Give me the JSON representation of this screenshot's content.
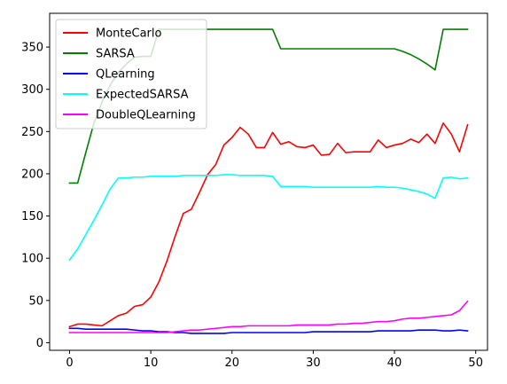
{
  "chart_data": {
    "type": "line",
    "title": "",
    "xlabel": "",
    "ylabel": "",
    "xlim": [
      -2.45,
      51.45
    ],
    "ylim": [
      -9,
      390
    ],
    "x_ticks": [
      0,
      10,
      20,
      30,
      40,
      50
    ],
    "y_ticks": [
      0,
      50,
      100,
      150,
      200,
      250,
      300,
      350
    ],
    "grid": false,
    "legend_position": "top-left",
    "x": [
      0,
      1,
      2,
      3,
      4,
      5,
      6,
      7,
      8,
      9,
      10,
      11,
      12,
      13,
      14,
      15,
      16,
      17,
      18,
      19,
      20,
      21,
      22,
      23,
      24,
      25,
      26,
      27,
      28,
      29,
      30,
      31,
      32,
      33,
      34,
      35,
      36,
      37,
      38,
      39,
      40,
      41,
      42,
      43,
      44,
      45,
      46,
      47,
      48,
      49
    ],
    "series": [
      {
        "name": "MonteCarlo",
        "color": "#ff0000",
        "values": [
          19,
          22,
          22,
          21,
          20,
          26,
          32,
          35,
          43,
          45,
          54,
          72,
          97,
          126,
          153,
          158,
          178,
          199,
          211,
          234,
          243,
          255,
          247,
          231,
          231,
          249,
          235,
          238,
          232,
          231,
          234,
          222,
          223,
          236,
          225,
          226,
          226,
          226,
          240,
          231,
          234,
          236,
          241,
          237,
          247,
          236,
          260,
          247,
          226,
          258
        ]
      },
      {
        "name": "SARSA",
        "color": "#008000",
        "values": [
          189,
          189,
          225,
          260,
          285,
          305,
          320,
          330,
          338,
          339,
          339,
          371,
          371,
          371,
          371,
          371,
          371,
          371,
          371,
          371,
          371,
          371,
          371,
          371,
          371,
          371,
          348,
          348,
          348,
          348,
          348,
          348,
          348,
          348,
          348,
          348,
          348,
          348,
          348,
          348,
          348,
          345,
          341,
          336,
          330,
          323,
          371,
          371,
          371,
          371
        ]
      },
      {
        "name": "QLearning",
        "color": "#0000ff",
        "values": [
          17,
          17,
          16,
          16,
          16,
          16,
          16,
          16,
          15,
          14,
          14,
          13,
          13,
          12,
          12,
          11,
          11,
          11,
          11,
          11,
          12,
          12,
          12,
          12,
          12,
          12,
          12,
          12,
          12,
          12,
          13,
          13,
          13,
          13,
          13,
          13,
          13,
          13,
          14,
          14,
          14,
          14,
          14,
          15,
          15,
          15,
          14,
          14,
          15,
          14
        ]
      },
      {
        "name": "ExpectedSARSA",
        "color": "#00ffff",
        "values": [
          98,
          111,
          128,
          145,
          163,
          182,
          195,
          195,
          196,
          196,
          197,
          197,
          197,
          197,
          198,
          198,
          198,
          198,
          198,
          199,
          199,
          198,
          198,
          198,
          198,
          197,
          185,
          185,
          185,
          185,
          184,
          184,
          184,
          184,
          184,
          184,
          184,
          184,
          185,
          184,
          184,
          183,
          181,
          179,
          176,
          171,
          195,
          196,
          194,
          195
        ]
      },
      {
        "name": "DoubleQLearning",
        "color": "#ff00ff",
        "values": [
          12,
          12,
          12,
          12,
          12,
          12,
          12,
          12,
          12,
          12,
          12,
          12,
          12,
          13,
          14,
          15,
          15,
          16,
          17,
          18,
          19,
          19,
          20,
          20,
          20,
          20,
          20,
          20,
          21,
          21,
          21,
          21,
          21,
          22,
          22,
          23,
          23,
          24,
          25,
          25,
          26,
          28,
          29,
          29,
          30,
          31,
          32,
          33,
          38,
          49
        ]
      }
    ]
  }
}
